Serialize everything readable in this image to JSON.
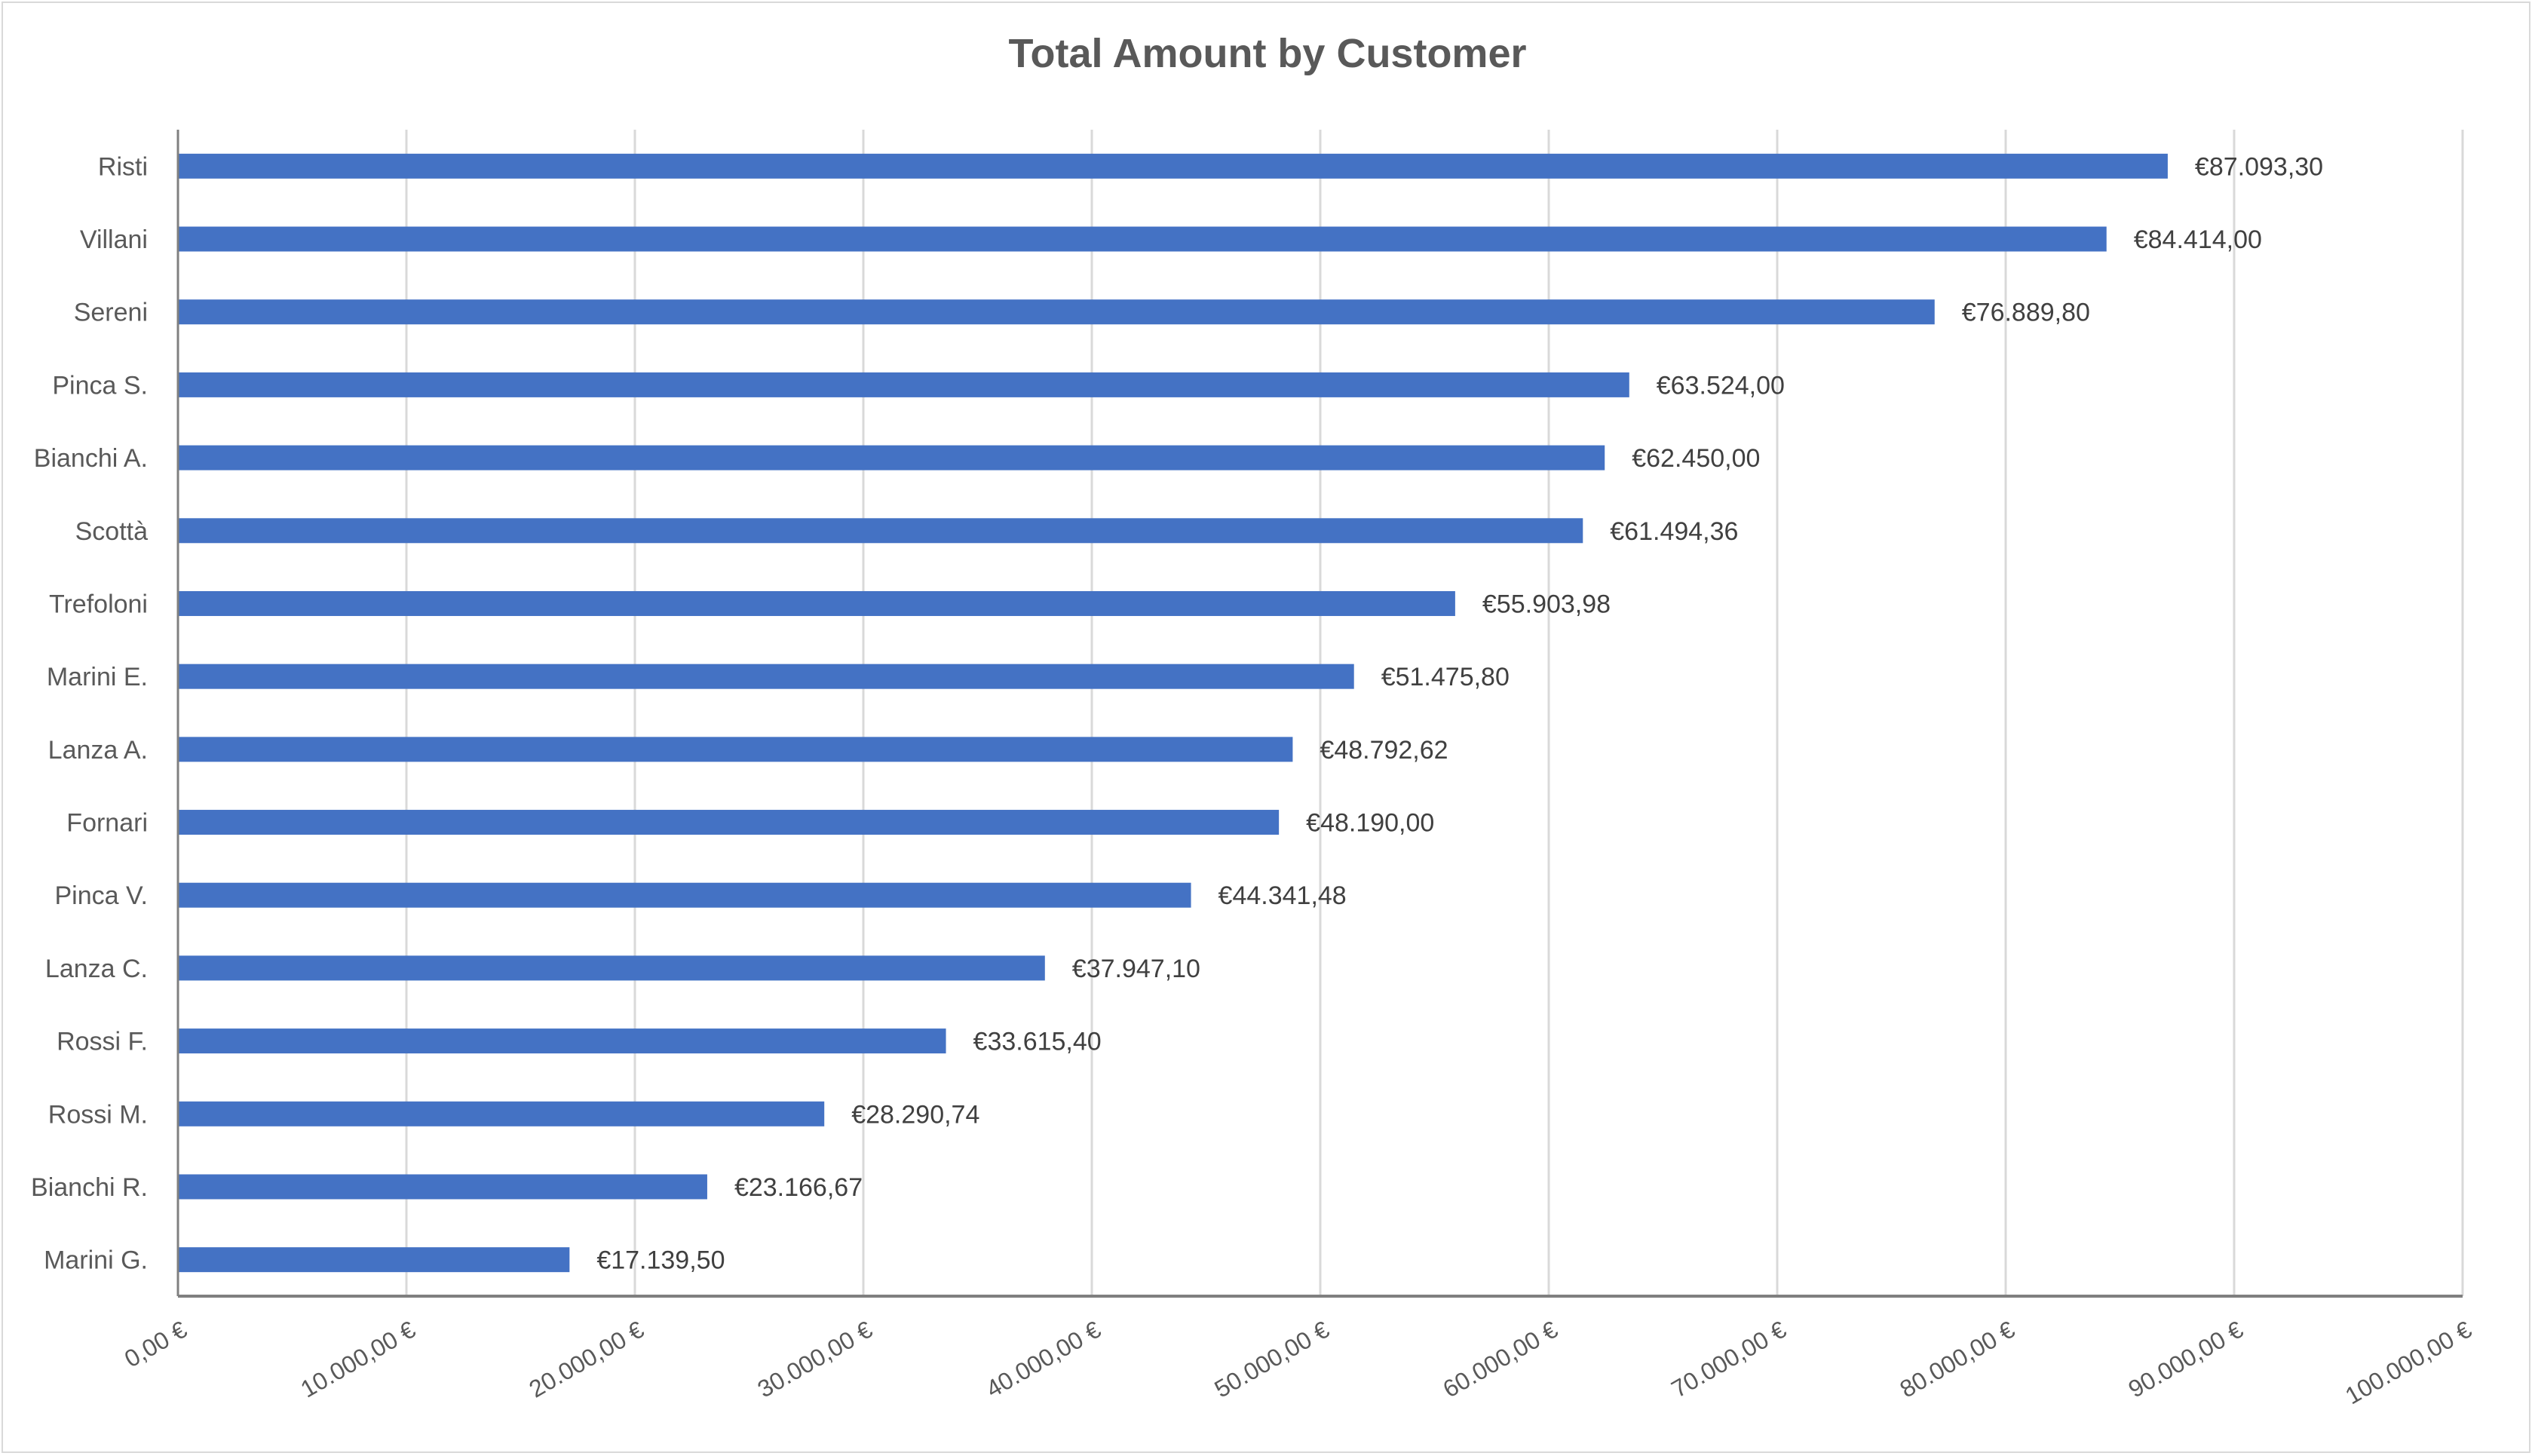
{
  "chart_data": {
    "type": "bar",
    "orientation": "horizontal",
    "title": "Total Amount by Customer",
    "categories": [
      "Risti",
      "Villani",
      "Sereni",
      "Pinca S.",
      "Bianchi A.",
      "Scottà",
      "Trefoloni",
      "Marini E.",
      "Lanza A.",
      "Fornari",
      "Pinca V.",
      "Lanza C.",
      "Rossi F.",
      "Rossi M.",
      "Bianchi R.",
      "Marini G."
    ],
    "values": [
      87093.3,
      84414.0,
      76889.8,
      63524.0,
      62450.0,
      61494.36,
      55903.98,
      51475.8,
      48792.62,
      48190.0,
      44341.48,
      37947.1,
      33615.4,
      28290.74,
      23166.67,
      17139.5
    ],
    "data_labels": [
      "€87.093,30",
      "€84.414,00",
      "€76.889,80",
      "€63.524,00",
      "€62.450,00",
      "€61.494,36",
      "€55.903,98",
      "€51.475,80",
      "€48.792,62",
      "€48.190,00",
      "€44.341,48",
      "€37.947,10",
      "€33.615,40",
      "€28.290,74",
      "€23.166,67",
      "€17.139,50"
    ],
    "xlim": [
      0,
      100000
    ],
    "x_ticks": [
      0,
      10000,
      20000,
      30000,
      40000,
      50000,
      60000,
      70000,
      80000,
      90000,
      100000
    ],
    "x_tick_labels": [
      "0,00 €",
      "10.000,00 €",
      "20.000,00 €",
      "30.000,00 €",
      "40.000,00 €",
      "50.000,00 €",
      "60.000,00 €",
      "70.000,00 €",
      "80.000,00 €",
      "90.000,00 €",
      "100.000,00 €"
    ],
    "grid": "vertical",
    "legend": "none",
    "bar_color": "#4472c4",
    "xlabel": "",
    "ylabel": ""
  }
}
